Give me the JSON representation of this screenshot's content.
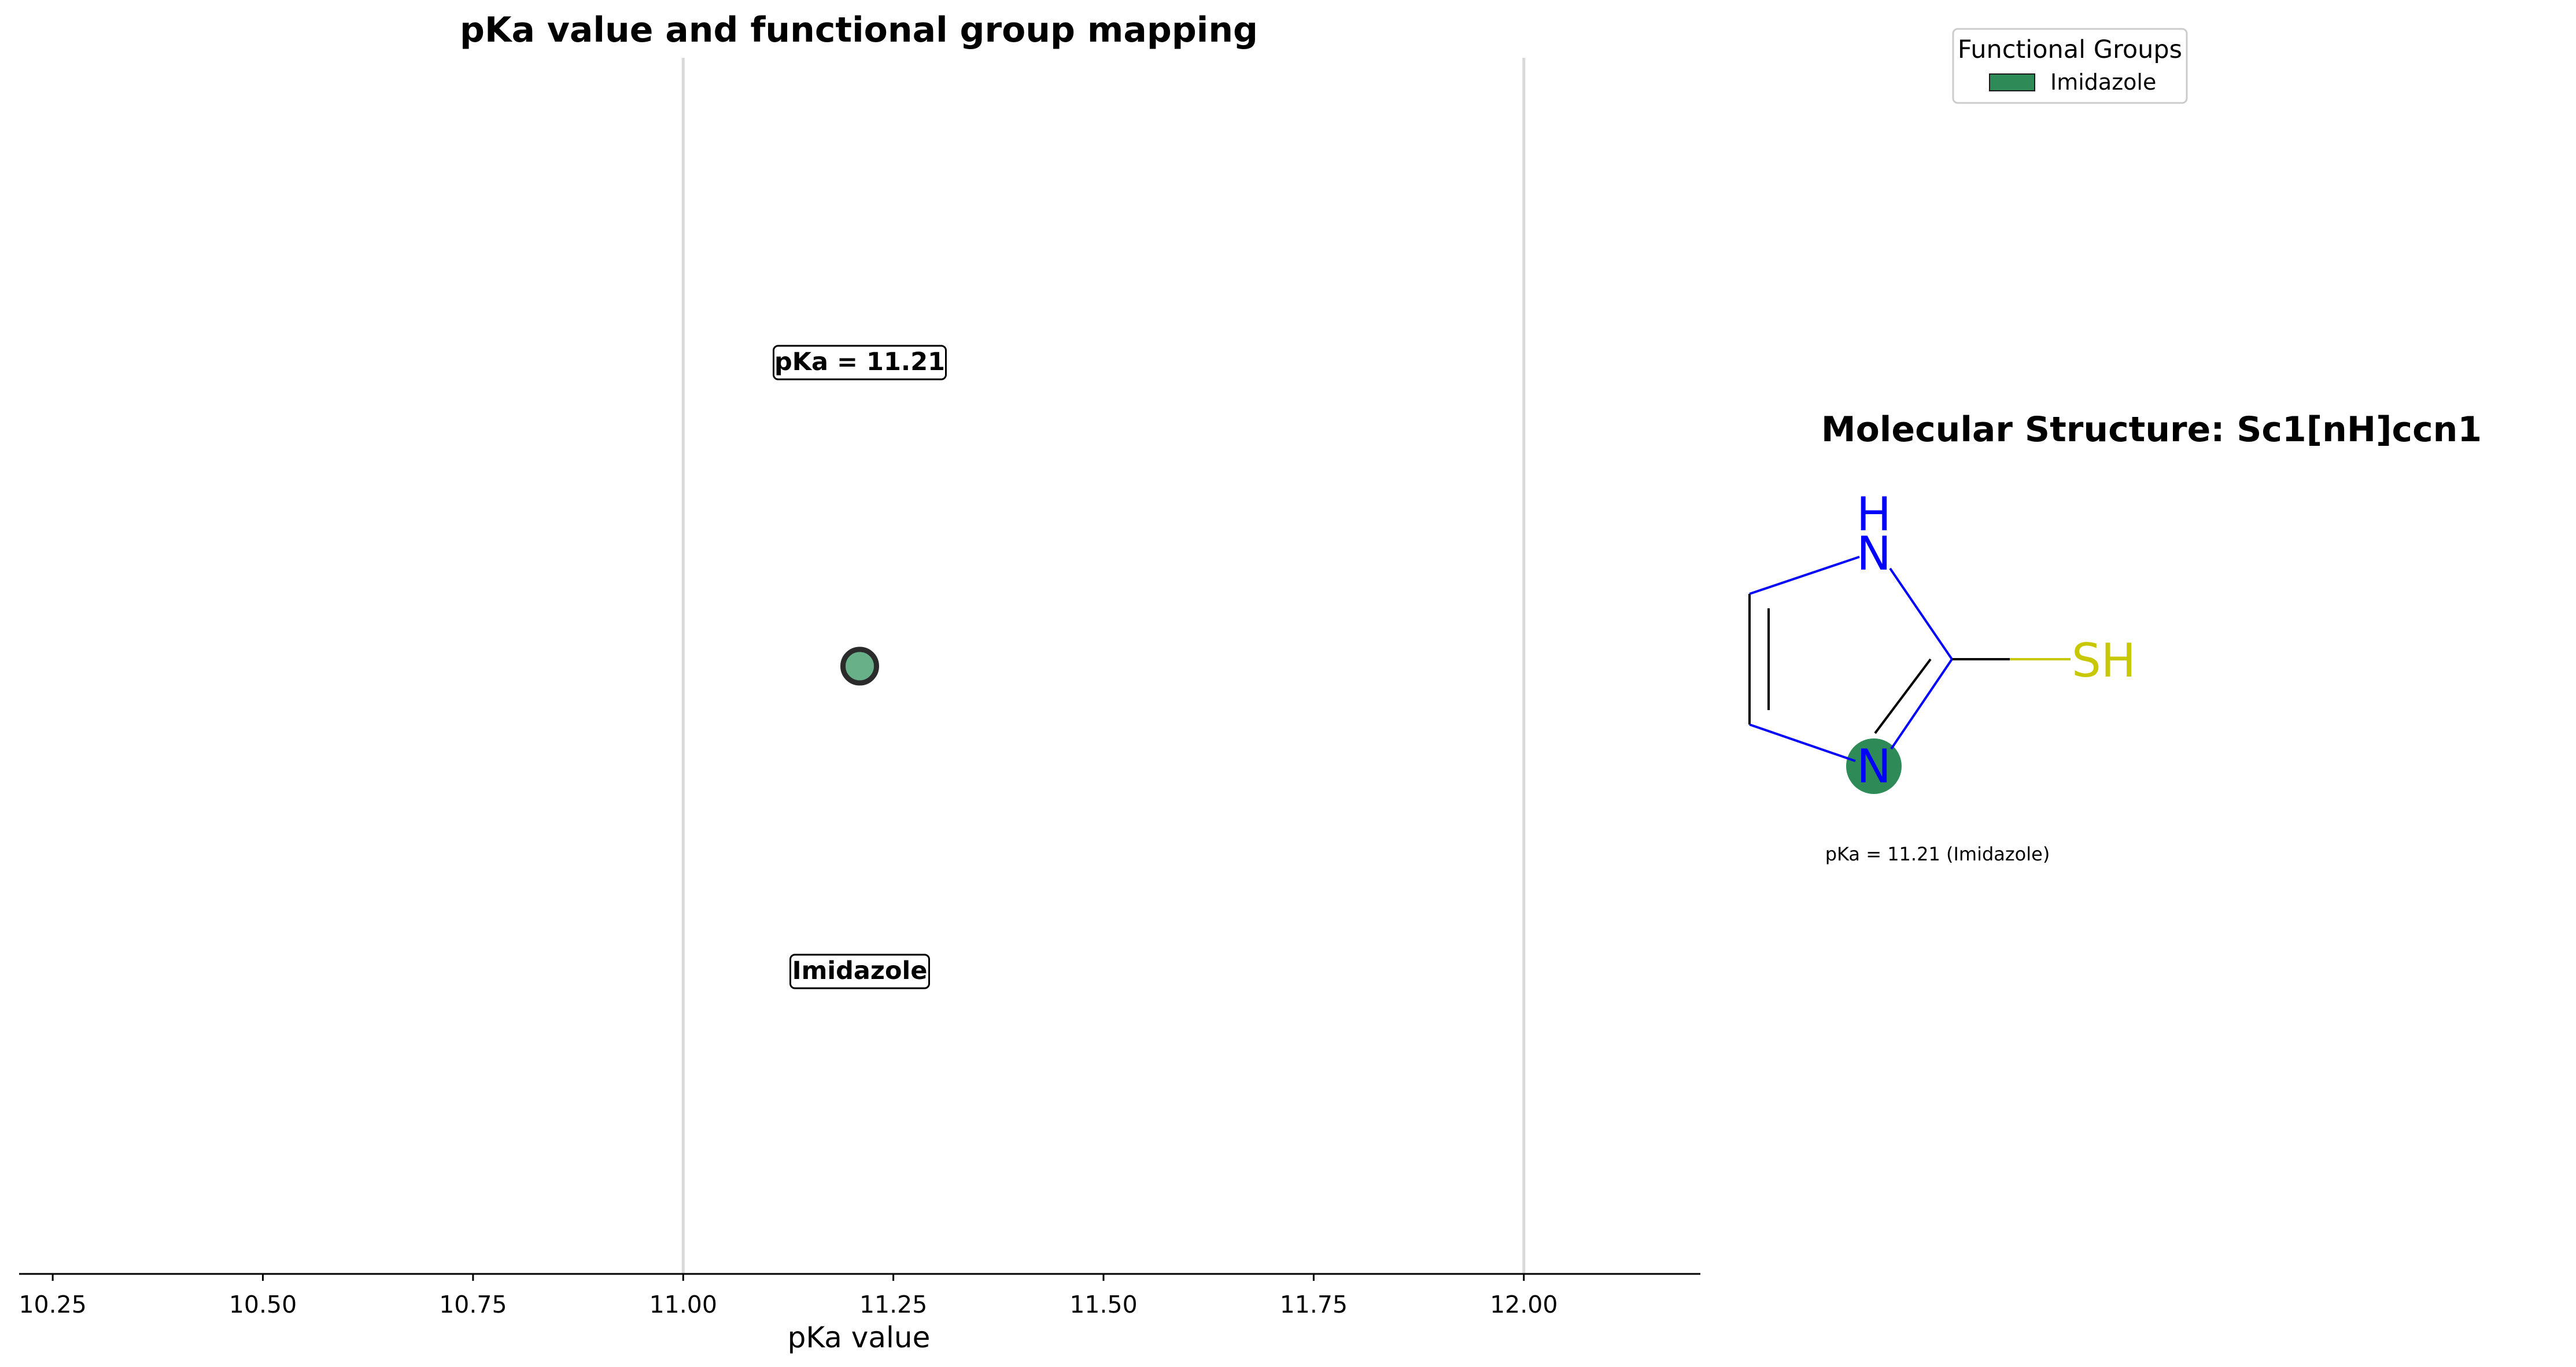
{
  "chart_data": {
    "type": "scatter",
    "title": "pKa value and functional group mapping",
    "xlabel": "pKa value",
    "xlim": [
      10.21,
      12.21
    ],
    "x_ticks": [
      "10.25",
      "10.50",
      "10.75",
      "11.00",
      "11.25",
      "11.50",
      "11.75",
      "12.00"
    ],
    "reference_lines": [
      11.0,
      12.0
    ],
    "grid": false,
    "points": [
      {
        "x": 11.21,
        "group": "Imidazole",
        "pka_label": "pKa = 11.21",
        "group_label": "Imidazole"
      }
    ],
    "legend": {
      "title": "Functional Groups",
      "placement": "top-right",
      "entries": [
        "Imidazole"
      ]
    }
  },
  "colors": {
    "marker_fill": "#68B088",
    "marker_edge": "#2b2b2b",
    "legend_patch": "#2E8B57",
    "highlight": "#2E8B57",
    "nitrogen": "#0000FF",
    "sulfur": "#C8C800",
    "ref_line": "#d9d9d9"
  },
  "molecule": {
    "title": "Molecular Structure: Sc1[nH]ccn1",
    "atoms": {
      "nh_h": "H",
      "nh_n": "N",
      "n": "N",
      "sh": "SH"
    },
    "caption": "pKa = 11.21 (Imidazole)"
  }
}
